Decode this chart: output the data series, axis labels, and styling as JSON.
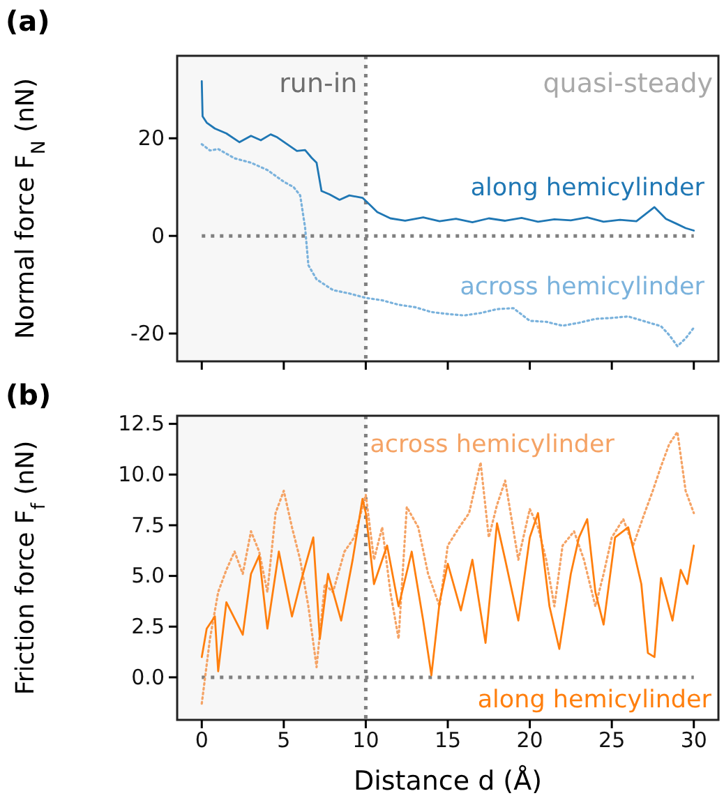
{
  "chart_data": [
    {
      "type": "line",
      "title": "(a)",
      "ylabel": "Normal force F$_{N}$ (nN)",
      "xlim": [
        -1.5,
        31.5
      ],
      "ylim": [
        -25.7,
        36.9
      ],
      "xticks": [
        0,
        5,
        10,
        15,
        20,
        25,
        30
      ],
      "yticks": [
        -20,
        0,
        20
      ],
      "tick_labels": "y",
      "grid": false,
      "annotations": [
        "quasi-steady"
      ],
      "ref_lines": [
        {
          "axis": "x",
          "value": 10,
          "label": null,
          "color": "#808080",
          "line_style": "dotted"
        },
        {
          "axis": "y",
          "value": 0,
          "label": null,
          "color": "#808080",
          "line_style": "dotted"
        }
      ],
      "bands": [
        {
          "axis": "x",
          "from": -1.5,
          "to": 10,
          "label": "run-in",
          "color": "#f7f7f7"
        }
      ],
      "series": [
        {
          "name": "along hemicylinder",
          "color": "#1f77b4",
          "line_style": "solid",
          "x": [
            0,
            0.05,
            0.3,
            0.8,
            1.5,
            2.3,
            3.0,
            3.6,
            4.2,
            4.6,
            5.2,
            5.8,
            6.3,
            6.7,
            7.0,
            7.3,
            7.8,
            8.4,
            9.0,
            9.8,
            10.3,
            10.7,
            11.5,
            12.4,
            13.5,
            14.5,
            15.5,
            16.5,
            17.5,
            18.5,
            19.5,
            20.5,
            21.5,
            22.5,
            23.5,
            24.5,
            25.5,
            26.5,
            27.6,
            28.3,
            29.0,
            29.5,
            30
          ],
          "values": [
            31.7,
            24.5,
            23.2,
            22.0,
            21.0,
            19.2,
            20.5,
            19.6,
            20.8,
            20.2,
            18.8,
            17.4,
            17.6,
            16.0,
            15.0,
            9.2,
            8.5,
            7.4,
            8.3,
            7.8,
            6.2,
            4.9,
            3.6,
            3.1,
            3.8,
            3.0,
            3.5,
            2.8,
            3.6,
            3.1,
            3.7,
            2.9,
            3.4,
            3.2,
            3.8,
            2.9,
            3.3,
            3.0,
            5.9,
            3.5,
            2.4,
            1.6,
            1.1
          ]
        },
        {
          "name": "across hemicylinder",
          "color": "#7ab2dc",
          "line_style": "dotted",
          "x": [
            0,
            0.5,
            1.0,
            2.0,
            3.0,
            4.0,
            5.0,
            5.6,
            6.0,
            6.3,
            6.5,
            7.0,
            8.0,
            9.0,
            10.0,
            11.0,
            12.0,
            13.0,
            14.0,
            15.0,
            16.0,
            17.0,
            18.0,
            19.0,
            20.0,
            21.0,
            22.0,
            23.0,
            24.0,
            25.0,
            26.0,
            27.0,
            28.0,
            28.5,
            29.0,
            29.5,
            30.0
          ],
          "values": [
            18.8,
            17.5,
            17.8,
            15.9,
            15.0,
            13.5,
            11.1,
            10.0,
            8.3,
            1.7,
            -6.0,
            -8.9,
            -11.1,
            -11.8,
            -12.7,
            -13.2,
            -14.1,
            -14.6,
            -15.6,
            -16.0,
            -16.3,
            -15.8,
            -15.0,
            -14.8,
            -17.4,
            -17.6,
            -18.4,
            -17.8,
            -17.0,
            -16.8,
            -16.5,
            -17.5,
            -18.5,
            -20.3,
            -22.6,
            -21.0,
            -18.8
          ]
        }
      ]
    },
    {
      "type": "line",
      "title": "(b)",
      "xlabel": "Distance d (Å)",
      "ylabel": "Friction force F$_{f}$ (nN)",
      "xlim": [
        -1.5,
        31.5
      ],
      "ylim": [
        -2.1,
        12.9
      ],
      "xticks": [
        0,
        5,
        10,
        15,
        20,
        25,
        30
      ],
      "yticks": [
        {
          "value": 0,
          "label": "0.0"
        },
        2.5,
        {
          "value": 5,
          "label": "5.0"
        },
        7.5,
        {
          "value": 10,
          "label": "10.0"
        },
        12.5
      ],
      "grid": false,
      "ref_lines": [
        {
          "axis": "x",
          "value": 10,
          "label": null,
          "color": "#808080",
          "line_style": "dotted"
        },
        {
          "axis": "y",
          "value": 0,
          "label": null,
          "color": "#808080",
          "line_style": "dotted"
        }
      ],
      "bands": [
        {
          "axis": "x",
          "from": -1.5,
          "to": 10,
          "label": null,
          "color": "#f7f7f7"
        }
      ],
      "series": [
        {
          "name": "across hemicylinder",
          "color": "#f5a365",
          "line_style": "dotted",
          "x": [
            0,
            0.5,
            1,
            1.5,
            2,
            2.5,
            3,
            3.5,
            4,
            4.5,
            5,
            5.5,
            6,
            6.5,
            7,
            7.5,
            8,
            8.7,
            9.3,
            10,
            10.5,
            11,
            11.5,
            12,
            12.5,
            13.2,
            13.8,
            14.5,
            15,
            15.7,
            16.3,
            17,
            17.5,
            18,
            18.5,
            19.3,
            20,
            20.5,
            21,
            21.5,
            22,
            22.7,
            23.3,
            24,
            24.5,
            25,
            25.7,
            26.3,
            27,
            27.5,
            28,
            28.5,
            29,
            29.5,
            30
          ],
          "values": [
            -1.3,
            1.9,
            4.2,
            5.3,
            6.2,
            5.1,
            7.2,
            6.2,
            4.2,
            8.1,
            9.2,
            7.4,
            5.8,
            3.5,
            0.5,
            4.6,
            4.2,
            6.2,
            6.9,
            9.0,
            5.8,
            7.4,
            4.2,
            1.9,
            8.4,
            7.4,
            5.1,
            3.5,
            6.5,
            7.4,
            8.1,
            10.6,
            6.9,
            8.5,
            9.7,
            5.8,
            8.3,
            7.4,
            5.8,
            3.5,
            6.5,
            7.2,
            5.8,
            3.5,
            5.1,
            6.9,
            7.8,
            6.5,
            8.1,
            9.2,
            10.4,
            11.5,
            12.1,
            9.2,
            8.1
          ]
        },
        {
          "name": "along hemicylinder",
          "color": "#ff7f0e",
          "line_style": "solid",
          "x": [
            0,
            0.3,
            0.8,
            1,
            1.5,
            2.5,
            3,
            3.5,
            4,
            4.7,
            5.5,
            6,
            6.8,
            7.2,
            7.7,
            8.5,
            9.2,
            9.8,
            10,
            10.5,
            11.3,
            12,
            12.8,
            13.5,
            14,
            14.5,
            15,
            15.8,
            16.5,
            17.3,
            18,
            18.5,
            19.3,
            20,
            20.5,
            21.2,
            21.8,
            22.5,
            23,
            23.5,
            24,
            24.5,
            25.2,
            26,
            26.8,
            27.2,
            27.6,
            28,
            28.7,
            29.2,
            29.6,
            30
          ],
          "values": [
            1.0,
            2.4,
            3.0,
            0.3,
            3.7,
            2.1,
            5.1,
            6.0,
            2.4,
            6.2,
            3.0,
            4.6,
            6.9,
            1.9,
            5.1,
            2.8,
            5.8,
            8.8,
            8.1,
            4.6,
            6.5,
            3.5,
            6.2,
            2.8,
            0.1,
            3.7,
            5.6,
            3.3,
            5.8,
            1.7,
            7.6,
            5.8,
            2.8,
            6.9,
            8.1,
            3.5,
            1.4,
            5.1,
            6.9,
            7.8,
            4.2,
            2.6,
            6.9,
            7.4,
            4.6,
            1.2,
            1.0,
            4.9,
            2.8,
            5.3,
            4.6,
            6.5
          ]
        }
      ]
    }
  ]
}
